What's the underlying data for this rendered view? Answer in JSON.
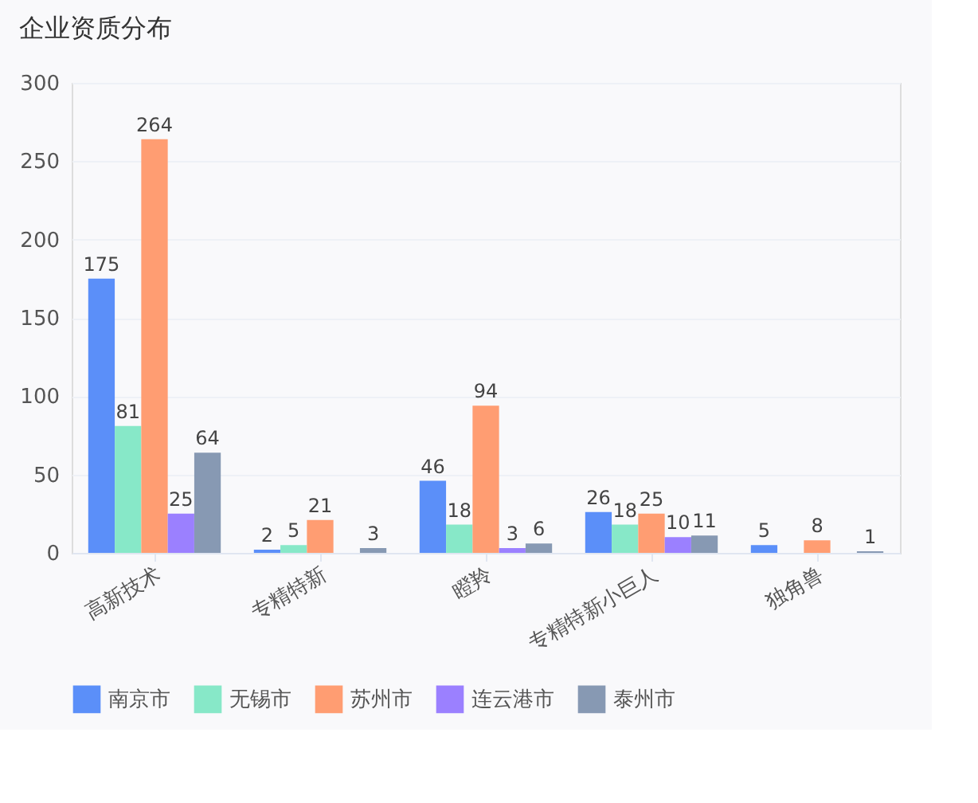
{
  "chart_data": {
    "type": "bar",
    "title": "企业资质分布",
    "categories": [
      "高新技术",
      "专精特新",
      "瞪羚",
      "专精特新小巨人",
      "独角兽"
    ],
    "series": [
      {
        "name": "南京市",
        "color": "#5b8ff9",
        "values": [
          175,
          2,
          46,
          26,
          5
        ]
      },
      {
        "name": "无锡市",
        "color": "#87e8c8",
        "values": [
          81,
          5,
          18,
          18,
          null
        ]
      },
      {
        "name": "苏州市",
        "color": "#ff9d72",
        "values": [
          264,
          21,
          94,
          25,
          8
        ]
      },
      {
        "name": "连云港市",
        "color": "#9b80ff",
        "values": [
          25,
          null,
          3,
          10,
          null
        ]
      },
      {
        "name": "泰州市",
        "color": "#8799b3",
        "values": [
          64,
          3,
          6,
          11,
          1
        ]
      }
    ],
    "ylim": [
      0,
      300
    ],
    "yticks": [
      0,
      50,
      100,
      150,
      200,
      250,
      300
    ],
    "grid": "y",
    "legend": "bottom left",
    "data_labels": true
  }
}
